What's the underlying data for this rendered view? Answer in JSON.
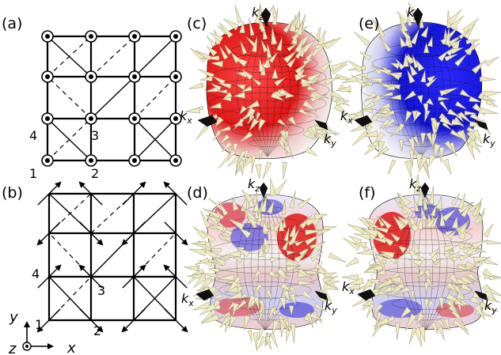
{
  "panels": {
    "a": "(a)",
    "b": "(b)",
    "c": "(c)",
    "d": "(d)",
    "e": "(e)",
    "f": "(f)"
  },
  "sites": {
    "one": "1",
    "two": "2",
    "three": "3",
    "four": "4"
  },
  "axes": {
    "x": "x",
    "y": "y",
    "z": "z"
  },
  "kaxes": {
    "kx": "k",
    "kx_sub": "x",
    "ky": "k",
    "ky_sub": "y",
    "kz": "k",
    "kz_sub": "z"
  },
  "colors": {
    "positive": "#e01818",
    "negative": "#1414d8",
    "neutral": "#f2f2f2",
    "arrow": "#eeeac4",
    "grid": "#000000"
  }
}
